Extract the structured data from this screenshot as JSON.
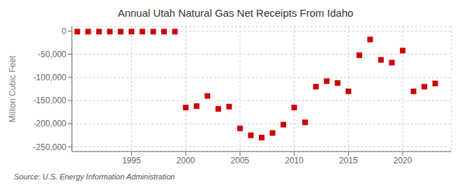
{
  "chart_data": {
    "type": "scatter",
    "title": "Annual Utah Natural Gas Net Receipts From Idaho",
    "ylabel": "Million Cubic Feet",
    "annotations": [
      "Source: U.S. Energy Information Administration"
    ],
    "x": [
      1990,
      1991,
      1992,
      1993,
      1994,
      1995,
      1996,
      1997,
      1998,
      1999,
      2000,
      2001,
      2002,
      2003,
      2004,
      2005,
      2006,
      2007,
      2008,
      2009,
      2010,
      2011,
      2012,
      2013,
      2014,
      2015,
      2016,
      2017,
      2018,
      2019,
      2020,
      2021,
      2022,
      2023
    ],
    "values": [
      -1000,
      -1000,
      -1000,
      -1000,
      -1000,
      -1000,
      -1000,
      -1000,
      -1000,
      -1000,
      -165000,
      -162000,
      -140000,
      -168000,
      -163000,
      -210000,
      -225000,
      -230000,
      -220000,
      -202000,
      -165000,
      -197000,
      -120000,
      -108000,
      -112000,
      -130000,
      -52000,
      -18000,
      -62000,
      -68000,
      -42000,
      -130000,
      -120000,
      -113000
    ],
    "color": "#cc0000",
    "marker": "square",
    "xlim": [
      1989.5,
      2024.5
    ],
    "xticks": [
      1995,
      2000,
      2005,
      2010,
      2015,
      2020
    ],
    "ylim": [
      -260000,
      10000
    ],
    "yticks": [
      0,
      {
        "value": -50000,
        "label": "-50,000"
      },
      {
        "value": -100000,
        "label": "-100,000"
      },
      {
        "value": -150000,
        "label": "-150,000"
      },
      {
        "value": -200000,
        "label": "-200,000"
      },
      {
        "value": -250000,
        "label": "-250,000"
      }
    ],
    "grid": true
  }
}
